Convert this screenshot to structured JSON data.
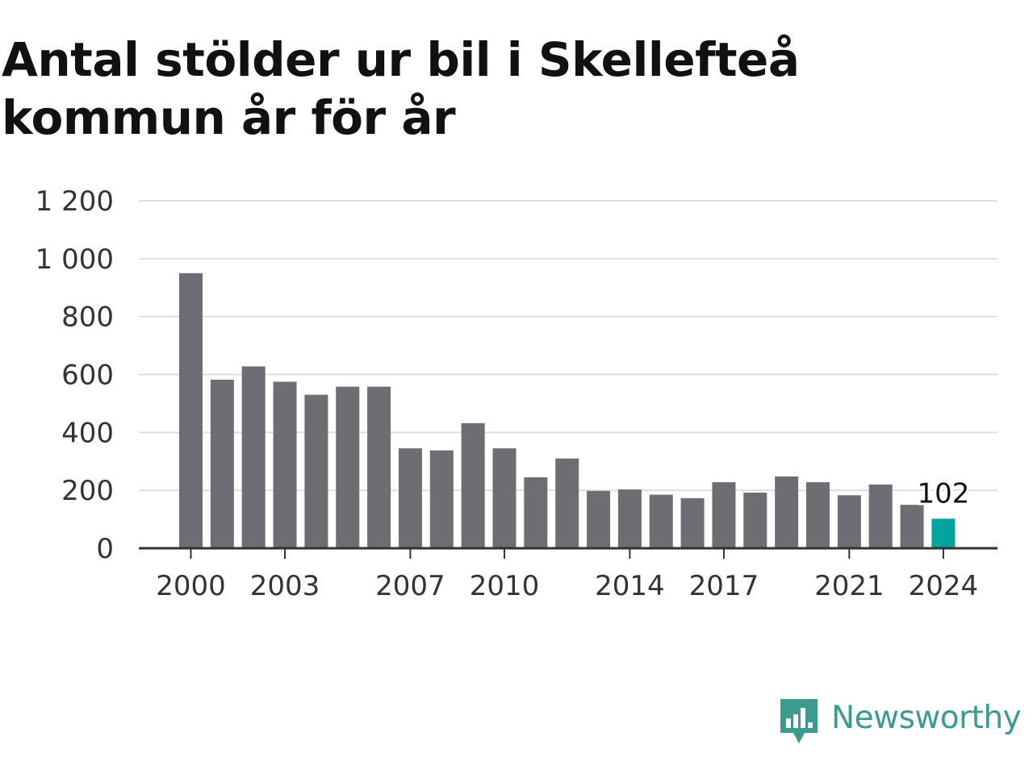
{
  "title": "Antal stölder ur bil i Skellefteå kommun år för år",
  "brand": {
    "name": "Newsworthy",
    "logo_icon": "newsworthy-logo-icon",
    "color": "#3a9b8e"
  },
  "chart_data": {
    "type": "bar",
    "title": "Antal stölder ur bil i Skellefteå kommun år för år",
    "xlabel": "",
    "ylabel": "",
    "categories": [
      "2000",
      "2001",
      "2002",
      "2003",
      "2004",
      "2005",
      "2006",
      "2007",
      "2008",
      "2009",
      "2010",
      "2011",
      "2012",
      "2013",
      "2014",
      "2015",
      "2016",
      "2017",
      "2018",
      "2019",
      "2020",
      "2021",
      "2022",
      "2023",
      "2024"
    ],
    "values": [
      950,
      582,
      628,
      575,
      530,
      558,
      558,
      345,
      338,
      432,
      345,
      245,
      310,
      198,
      203,
      185,
      173,
      228,
      192,
      248,
      228,
      183,
      220,
      150,
      102
    ],
    "x_tick_labels": [
      "2000",
      "2003",
      "2007",
      "2010",
      "2014",
      "2017",
      "2021",
      "2024"
    ],
    "y_ticks": [
      0,
      200,
      400,
      600,
      800,
      1000,
      1200
    ],
    "y_tick_labels": [
      "0",
      "200",
      "400",
      "600",
      "800",
      "1 000",
      "1 200"
    ],
    "ylim": [
      0,
      1200
    ],
    "grid": true,
    "legend": "none",
    "bar_color": "#6e6d73",
    "highlight_color": "#00a49a",
    "highlight_category": "2024",
    "annotations": [
      {
        "category": "2024",
        "text": "102"
      }
    ]
  }
}
